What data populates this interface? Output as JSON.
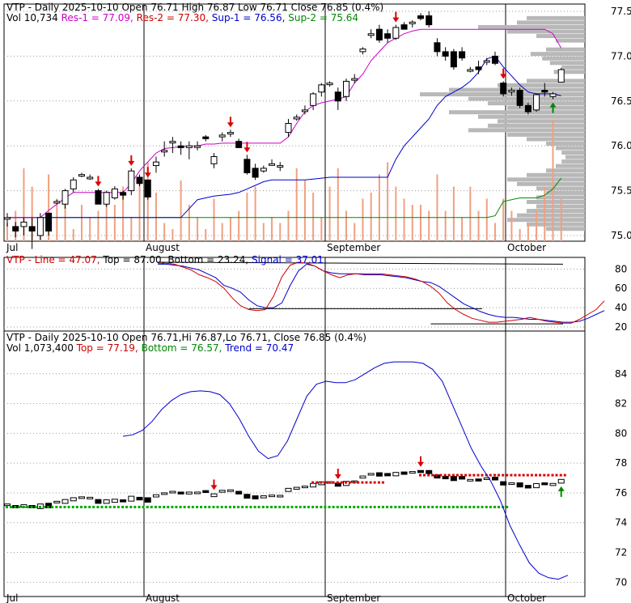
{
  "chart_data": [
    {
      "type": "candlestick",
      "header": {
        "line1": [
          {
            "text": "VTP - Daily 2025-10-10 Open 76.71  High 76.87  Low 76.71  Close 76.85 (0.4%)",
            "color": "#000000"
          }
        ],
        "line2": [
          {
            "text": "Vol 10,734",
            "color": "#000000"
          },
          {
            "text": "Res-1 = 77.09,",
            "color": "#cc00cc"
          },
          {
            "text": "Res-2 = 77.30,",
            "color": "#cc0000"
          },
          {
            "text": "Sup-1 = 76.56,",
            "color": "#0000cc"
          },
          {
            "text": "Sup-2 = 75.64",
            "color": "#008800"
          }
        ]
      },
      "x_labels": [
        "Jul",
        "August",
        "September",
        "October"
      ],
      "y_ticks": [
        "77.5",
        "77.0",
        "76.5",
        "76.0",
        "75.5",
        "75.0"
      ],
      "ylim": [
        75.0,
        77.5
      ],
      "candles": [
        [
          75.2,
          75.25,
          75.1,
          75.2
        ],
        [
          75.1,
          75.15,
          74.98,
          75.05
        ],
        [
          75.1,
          75.2,
          75.0,
          75.15
        ],
        [
          75.1,
          75.2,
          74.85,
          75.05
        ],
        [
          75.0,
          75.25,
          74.95,
          75.2
        ],
        [
          75.25,
          75.25,
          75.0,
          75.05
        ],
        [
          75.38,
          75.4,
          75.35,
          75.38
        ],
        [
          75.35,
          75.52,
          75.3,
          75.5
        ],
        [
          75.52,
          75.65,
          75.48,
          75.62
        ],
        [
          75.68,
          75.7,
          75.65,
          75.68
        ],
        [
          75.65,
          75.68,
          75.62,
          75.65
        ],
        [
          75.5,
          75.52,
          75.35,
          75.35
        ],
        [
          75.35,
          75.5,
          75.32,
          75.48
        ],
        [
          75.42,
          75.55,
          75.4,
          75.52
        ],
        [
          75.48,
          75.5,
          75.4,
          75.45
        ],
        [
          75.5,
          75.75,
          75.45,
          75.72
        ],
        [
          75.65,
          75.68,
          75.55,
          75.58
        ],
        [
          75.62,
          75.62,
          75.4,
          75.43
        ],
        [
          75.78,
          75.88,
          75.7,
          75.82
        ],
        [
          75.95,
          76.05,
          75.88,
          75.95
        ],
        [
          76.05,
          76.1,
          75.92,
          76.05
        ],
        [
          76.0,
          76.05,
          75.9,
          75.98
        ],
        [
          75.98,
          76.05,
          75.85,
          76.0
        ],
        [
          76.0,
          76.05,
          75.95,
          76.0
        ],
        [
          76.1,
          76.12,
          76.05,
          76.08
        ],
        [
          75.8,
          75.92,
          75.75,
          75.88
        ],
        [
          76.1,
          76.15,
          76.05,
          76.12
        ],
        [
          76.15,
          76.18,
          76.1,
          76.15
        ],
        [
          76.05,
          76.08,
          75.98,
          75.98
        ],
        [
          75.85,
          75.9,
          75.68,
          75.7
        ],
        [
          75.75,
          75.8,
          75.62,
          75.65
        ],
        [
          75.72,
          75.78,
          75.7,
          75.75
        ],
        [
          75.8,
          75.85,
          75.78,
          75.8
        ],
        [
          75.78,
          75.82,
          75.72,
          75.78
        ],
        [
          76.15,
          76.3,
          76.1,
          76.25
        ],
        [
          76.3,
          76.35,
          76.28,
          76.32
        ],
        [
          76.4,
          76.45,
          76.35,
          76.4
        ],
        [
          76.45,
          76.6,
          76.4,
          76.58
        ],
        [
          76.6,
          76.7,
          76.55,
          76.68
        ],
        [
          76.7,
          76.72,
          76.66,
          76.7
        ],
        [
          76.6,
          76.65,
          76.4,
          76.5
        ],
        [
          76.55,
          76.75,
          76.5,
          76.72
        ],
        [
          76.75,
          76.8,
          76.7,
          76.75
        ],
        [
          77.05,
          77.1,
          77.02,
          77.08
        ],
        [
          77.25,
          77.3,
          77.2,
          77.25
        ],
        [
          77.3,
          77.35,
          77.15,
          77.18
        ],
        [
          77.25,
          77.3,
          77.15,
          77.2
        ],
        [
          77.2,
          77.35,
          77.18,
          77.32
        ],
        [
          77.35,
          77.38,
          77.3,
          77.3
        ],
        [
          77.38,
          77.4,
          77.32,
          77.38
        ],
        [
          77.45,
          77.48,
          77.4,
          77.42
        ],
        [
          77.45,
          77.5,
          77.32,
          77.35
        ],
        [
          77.15,
          77.2,
          77.0,
          77.05
        ],
        [
          77.05,
          77.1,
          76.95,
          77.0
        ],
        [
          77.05,
          77.08,
          76.85,
          76.88
        ],
        [
          77.05,
          77.1,
          76.95,
          76.98
        ],
        [
          76.85,
          76.88,
          76.82,
          76.85
        ],
        [
          76.88,
          76.95,
          76.8,
          76.85
        ],
        [
          76.95,
          76.98,
          76.9,
          76.95
        ],
        [
          77.0,
          77.05,
          76.9,
          76.92
        ],
        [
          76.7,
          76.72,
          76.55,
          76.58
        ],
        [
          76.62,
          76.65,
          76.56,
          76.62
        ],
        [
          76.62,
          76.65,
          76.42,
          76.45
        ],
        [
          76.45,
          76.48,
          76.35,
          76.38
        ],
        [
          76.4,
          76.58,
          76.38,
          76.57
        ],
        [
          76.62,
          76.7,
          76.55,
          76.6
        ],
        [
          76.55,
          76.6,
          76.52,
          76.58
        ],
        [
          76.71,
          76.87,
          76.71,
          76.85
        ]
      ],
      "res1": [
        75.2,
        75.2,
        75.2,
        75.2,
        75.2,
        75.28,
        75.35,
        75.42,
        75.48,
        75.48,
        75.48,
        75.48,
        75.48,
        75.48,
        75.48,
        75.58,
        75.72,
        75.82,
        75.92,
        75.97,
        75.98,
        75.99,
        76.0,
        76.0,
        76.02,
        76.02,
        76.03,
        76.03,
        76.03,
        76.03,
        76.03,
        76.03,
        76.03,
        76.03,
        76.1,
        76.25,
        76.38,
        76.45,
        76.48,
        76.5,
        76.52,
        76.55,
        76.7,
        76.8,
        76.95,
        77.05,
        77.15,
        77.2,
        77.25,
        77.28,
        77.3,
        77.3,
        77.3,
        77.3,
        77.3,
        77.3,
        77.3,
        77.3,
        77.3,
        77.3,
        77.3,
        77.3,
        77.3,
        77.3,
        77.3,
        77.3,
        77.25,
        77.09
      ],
      "sup1": [
        75.2,
        75.2,
        75.2,
        75.2,
        75.2,
        75.2,
        75.2,
        75.2,
        75.2,
        75.2,
        75.2,
        75.2,
        75.2,
        75.2,
        75.2,
        75.2,
        75.2,
        75.2,
        75.2,
        75.2,
        75.2,
        75.2,
        75.3,
        75.4,
        75.42,
        75.44,
        75.45,
        75.46,
        75.48,
        75.52,
        75.56,
        75.6,
        75.62,
        75.62,
        75.62,
        75.62,
        75.62,
        75.63,
        75.64,
        75.65,
        75.65,
        75.65,
        75.65,
        75.65,
        75.65,
        75.65,
        75.65,
        75.85,
        76.0,
        76.1,
        76.2,
        76.3,
        76.45,
        76.55,
        76.6,
        76.65,
        76.72,
        76.82,
        76.97,
        77.0,
        76.88,
        76.78,
        76.68,
        76.6,
        76.58,
        76.58,
        76.58,
        76.56
      ],
      "sup2": [
        75.2,
        75.2,
        75.2,
        75.2,
        75.2,
        75.2,
        75.2,
        75.2,
        75.2,
        75.2,
        75.2,
        75.2,
        75.2,
        75.2,
        75.2,
        75.2,
        75.2,
        75.2,
        75.2,
        75.2,
        75.2,
        75.2,
        75.2,
        75.2,
        75.2,
        75.2,
        75.2,
        75.2,
        75.2,
        75.2,
        75.2,
        75.2,
        75.2,
        75.2,
        75.2,
        75.2,
        75.2,
        75.2,
        75.2,
        75.2,
        75.2,
        75.2,
        75.2,
        75.2,
        75.2,
        75.2,
        75.2,
        75.2,
        75.2,
        75.2,
        75.2,
        75.2,
        75.2,
        75.2,
        75.2,
        75.2,
        75.2,
        75.2,
        75.2,
        75.22,
        75.38,
        75.4,
        75.42,
        75.42,
        75.42,
        75.45,
        75.52,
        75.64
      ],
      "volume": [
        0.15,
        0.25,
        0.6,
        0.45,
        0.1,
        0.55,
        0.35,
        0.3,
        0.1,
        0.3,
        0.2,
        0.25,
        0.35,
        0.3,
        0.45,
        0.2,
        0.5,
        0.65,
        0.4,
        0.15,
        0.1,
        0.5,
        0.3,
        0.2,
        0.1,
        0.35,
        0.15,
        0.2,
        0.25,
        0.4,
        0.45,
        0.15,
        0.2,
        0.15,
        0.25,
        0.6,
        0.5,
        0.4,
        0.2,
        0.45,
        0.6,
        0.25,
        0.15,
        0.35,
        0.4,
        0.55,
        0.65,
        0.45,
        0.35,
        0.3,
        0.3,
        0.25,
        0.55,
        0.25,
        0.45,
        0.2,
        0.45,
        0.25,
        0.35,
        0.15,
        0.35,
        0.25,
        0.1,
        0.15,
        0.25,
        0.45,
        1.0,
        0.35
      ],
      "sell_signals": [
        11,
        15,
        17,
        27,
        29,
        47,
        60
      ],
      "buy_signals": [
        66
      ],
      "volume_profile": [
        {
          "price": 77.42,
          "w": 0.3
        },
        {
          "price": 77.37,
          "w": 0.35
        },
        {
          "price": 77.32,
          "w": 0.55
        },
        {
          "price": 77.27,
          "w": 0.4
        },
        {
          "price": 77.22,
          "w": 0.25
        },
        {
          "price": 77.17,
          "w": 0.15
        },
        {
          "price": 77.07,
          "w": 0.2
        },
        {
          "price": 77.02,
          "w": 0.28
        },
        {
          "price": 76.97,
          "w": 0.22
        },
        {
          "price": 76.92,
          "w": 0.18
        },
        {
          "price": 76.87,
          "w": 0.12
        },
        {
          "price": 76.82,
          "w": 0.16
        },
        {
          "price": 76.72,
          "w": 0.3
        },
        {
          "price": 76.67,
          "w": 0.45
        },
        {
          "price": 76.62,
          "w": 0.7
        },
        {
          "price": 76.57,
          "w": 0.85
        },
        {
          "price": 76.52,
          "w": 0.6
        },
        {
          "price": 76.47,
          "w": 0.5
        },
        {
          "price": 76.42,
          "w": 0.4
        },
        {
          "price": 76.37,
          "w": 0.7
        },
        {
          "price": 76.32,
          "w": 0.55
        },
        {
          "price": 76.27,
          "w": 0.45
        },
        {
          "price": 76.22,
          "w": 0.5
        },
        {
          "price": 76.17,
          "w": 0.6
        },
        {
          "price": 76.12,
          "w": 0.4
        },
        {
          "price": 76.07,
          "w": 0.3
        },
        {
          "price": 76.02,
          "w": 0.2
        },
        {
          "price": 75.97,
          "w": 0.15
        },
        {
          "price": 75.92,
          "w": 0.12
        },
        {
          "price": 75.87,
          "w": 0.1
        },
        {
          "price": 75.82,
          "w": 0.12
        },
        {
          "price": 75.77,
          "w": 0.15
        },
        {
          "price": 75.72,
          "w": 0.2
        },
        {
          "price": 75.67,
          "w": 0.3
        },
        {
          "price": 75.62,
          "w": 0.4
        },
        {
          "price": 75.57,
          "w": 0.35
        },
        {
          "price": 75.52,
          "w": 0.25
        },
        {
          "price": 75.47,
          "w": 0.2
        },
        {
          "price": 75.42,
          "w": 0.25
        },
        {
          "price": 75.37,
          "w": 0.3
        },
        {
          "price": 75.32,
          "w": 0.25
        },
        {
          "price": 75.27,
          "w": 0.3
        },
        {
          "price": 75.22,
          "w": 0.35
        },
        {
          "price": 75.17,
          "w": 0.4
        },
        {
          "price": 75.12,
          "w": 0.3
        },
        {
          "price": 75.07,
          "w": 0.2
        }
      ]
    },
    {
      "type": "line",
      "header": [
        {
          "text": "VTP - Line = 47.07,",
          "color": "#cc0000"
        },
        {
          "text": "Top = 87.00,",
          "color": "#000000"
        },
        {
          "text": "Bottom = 23.24,",
          "color": "#000000"
        },
        {
          "text": "Signal = 37.01",
          "color": "#0000cc"
        }
      ],
      "y_ticks": [
        "80",
        "60",
        "40",
        "20"
      ],
      "ylim": [
        15,
        92
      ],
      "start_index": 19,
      "line": [
        86,
        86,
        85,
        82,
        79,
        74,
        71,
        67,
        60,
        50,
        42,
        38,
        37,
        38,
        52,
        72,
        84,
        87,
        86,
        83,
        78,
        74,
        71,
        74,
        75,
        75,
        75,
        75,
        74,
        73,
        72,
        70,
        67,
        62,
        55,
        45,
        38,
        33,
        29,
        27,
        25,
        25,
        26,
        27,
        28,
        30,
        28,
        26,
        25,
        24,
        24,
        28,
        33,
        38,
        47.07
      ],
      "signal": [
        85,
        85,
        84,
        83,
        81,
        79,
        75,
        71,
        63,
        60,
        56,
        48,
        42,
        40,
        40,
        45,
        63,
        78,
        85,
        83,
        78,
        76,
        75,
        75,
        75,
        74,
        74,
        74,
        73,
        72,
        71,
        69,
        67,
        66,
        62,
        56,
        50,
        44,
        40,
        36,
        33,
        31,
        30,
        30,
        29,
        28,
        28,
        27,
        26,
        25,
        25,
        26,
        29,
        33,
        37.01
      ],
      "top_line": {
        "start": 19,
        "values": [
          87,
          85
        ]
      },
      "bottom_line": {
        "start": 30,
        "values": [
          39,
          39
        ]
      },
      "bottom_line2": {
        "start": 52,
        "values": [
          23.24,
          23.24
        ]
      }
    },
    {
      "type": "line",
      "header": {
        "line1": [
          {
            "text": "VTP - Daily 2025-10-10 Open 76.71,Hi 76.87,Lo 76.71, Close 76.85 (0.4%)",
            "color": "#000000"
          }
        ],
        "line2": [
          {
            "text": "Vol 1,073,400",
            "color": "#000000"
          },
          {
            "text": "Top = 77.19,",
            "color": "#cc0000"
          },
          {
            "text": "Bottom = 76.57,",
            "color": "#008800"
          },
          {
            "text": "Trend = 70.47",
            "color": "#0000cc"
          }
        ]
      },
      "x_labels": [
        "Jul",
        "August",
        "September",
        "October"
      ],
      "y_ticks": [
        "84",
        "82",
        "80",
        "78",
        "76",
        "74",
        "72",
        "70"
      ],
      "ylim": [
        69.8,
        86.0
      ],
      "trend_start": 14,
      "trend": [
        79.8,
        79.9,
        80.2,
        80.8,
        81.6,
        82.2,
        82.6,
        82.8,
        82.85,
        82.8,
        82.6,
        82.0,
        81.0,
        79.8,
        78.8,
        78.3,
        78.5,
        79.5,
        81.0,
        82.5,
        83.3,
        83.5,
        83.4,
        83.4,
        83.6,
        84.0,
        84.4,
        84.7,
        84.8,
        84.8,
        84.8,
        84.7,
        84.3,
        83.5,
        82.0,
        80.5,
        79.0,
        77.8,
        76.8,
        75.5,
        73.8,
        72.5,
        71.3,
        70.6,
        70.3,
        70.2,
        70.47
      ],
      "top_dots": {
        "start": 37,
        "end": 45,
        "value": 76.7
      },
      "top_dots2": {
        "start": 50,
        "end": 67,
        "value": 77.19
      },
      "bottom_dots": {
        "start": 0,
        "end": 60,
        "value": 75.05
      },
      "sell_signals": [
        25,
        40,
        50
      ],
      "buy_signals": [
        67
      ]
    }
  ]
}
